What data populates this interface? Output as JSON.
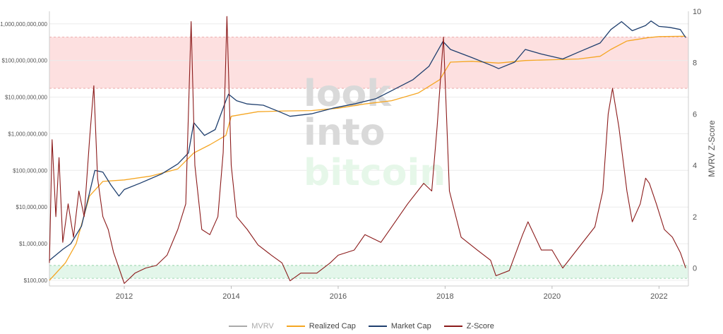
{
  "chart_data": {
    "type": "line",
    "watermark": [
      "look",
      "into",
      "bitcoin"
    ],
    "left_axis": {
      "scale": "log",
      "ticks": [
        {
          "value": 100000,
          "label": "$100,000"
        },
        {
          "value": 1000000,
          "label": "$1,000,000"
        },
        {
          "value": 10000000,
          "label": "$10,000,000"
        },
        {
          "value": 100000000,
          "label": "$100,000,000"
        },
        {
          "value": 1000000000,
          "label": "$1,000,000,000"
        },
        {
          "value": 10000000000,
          "label": "$10,000,000,000"
        },
        {
          "value": 100000000000,
          "label": "$100,000,000,000"
        },
        {
          "value": 1000000000000,
          "label": "$1,000,000,000,000"
        }
      ],
      "range": [
        70000,
        2200000000000
      ]
    },
    "right_axis": {
      "title": "MVRV Z-Score",
      "ticks": [
        "0",
        "2",
        "4",
        "6",
        "8",
        "10"
      ],
      "range": [
        -0.7,
        10
      ]
    },
    "x_axis": {
      "ticks": [
        "2012",
        "2014",
        "2016",
        "2018",
        "2020",
        "2022"
      ],
      "range": [
        2010.6,
        2022.55
      ]
    },
    "bands": [
      {
        "name": "overvalued",
        "z_range": [
          7.0,
          9.0
        ],
        "color": "#fde0e0",
        "border": "#e8a0a0"
      },
      {
        "name": "undervalued",
        "z_range": [
          -0.4,
          0.1
        ],
        "color": "#e3f6ea",
        "border": "#86cc9e"
      }
    ],
    "legend": [
      {
        "label": "MVRV",
        "color": "#aaaaaa"
      },
      {
        "label": "Realized Cap",
        "color": "#f5a623"
      },
      {
        "label": "Market Cap",
        "color": "#1f3f6e"
      },
      {
        "label": "Z-Score",
        "color": "#8b1a1a"
      }
    ],
    "series": [
      {
        "name": "Market Cap",
        "color": "#1f3f6e",
        "points": [
          [
            2010.6,
            350000
          ],
          [
            2010.85,
            700000
          ],
          [
            2011.0,
            1000000
          ],
          [
            2011.2,
            3000000
          ],
          [
            2011.45,
            100000000
          ],
          [
            2011.6,
            90000000
          ],
          [
            2011.75,
            40000000
          ],
          [
            2011.9,
            20000000
          ],
          [
            2012.0,
            30000000
          ],
          [
            2012.3,
            45000000
          ],
          [
            2012.7,
            80000000
          ],
          [
            2013.0,
            150000000
          ],
          [
            2013.2,
            300000000
          ],
          [
            2013.3,
            2000000000
          ],
          [
            2013.5,
            900000000
          ],
          [
            2013.7,
            1300000000
          ],
          [
            2013.9,
            8000000000
          ],
          [
            2013.95,
            12000000000
          ],
          [
            2014.1,
            8000000000
          ],
          [
            2014.3,
            6500000000
          ],
          [
            2014.6,
            6000000000
          ],
          [
            2014.9,
            4000000000
          ],
          [
            2015.1,
            3000000000
          ],
          [
            2015.5,
            3500000000
          ],
          [
            2015.9,
            5000000000
          ],
          [
            2016.3,
            6500000000
          ],
          [
            2016.7,
            9000000000
          ],
          [
            2017.0,
            15000000000
          ],
          [
            2017.4,
            30000000000
          ],
          [
            2017.7,
            70000000000
          ],
          [
            2017.96,
            330000000000
          ],
          [
            2018.1,
            200000000000
          ],
          [
            2018.5,
            120000000000
          ],
          [
            2018.9,
            70000000000
          ],
          [
            2019.0,
            60000000000
          ],
          [
            2019.3,
            90000000000
          ],
          [
            2019.5,
            200000000000
          ],
          [
            2019.8,
            150000000000
          ],
          [
            2020.2,
            110000000000
          ],
          [
            2020.5,
            170000000000
          ],
          [
            2020.9,
            300000000000
          ],
          [
            2021.1,
            700000000000
          ],
          [
            2021.3,
            1150000000000
          ],
          [
            2021.5,
            650000000000
          ],
          [
            2021.75,
            900000000000
          ],
          [
            2021.85,
            1200000000000
          ],
          [
            2022.0,
            850000000000
          ],
          [
            2022.2,
            800000000000
          ],
          [
            2022.4,
            700000000000
          ],
          [
            2022.5,
            420000000000
          ]
        ]
      },
      {
        "name": "Realized Cap",
        "color": "#f5a623",
        "points": [
          [
            2010.6,
            100000
          ],
          [
            2010.9,
            300000
          ],
          [
            2011.1,
            1000000
          ],
          [
            2011.35,
            20000000
          ],
          [
            2011.6,
            50000000
          ],
          [
            2012.0,
            55000000
          ],
          [
            2012.5,
            70000000
          ],
          [
            2013.0,
            110000000
          ],
          [
            2013.3,
            300000000
          ],
          [
            2013.6,
            500000000
          ],
          [
            2013.9,
            900000000
          ],
          [
            2014.0,
            3000000000
          ],
          [
            2014.5,
            4000000000
          ],
          [
            2015.0,
            4200000000
          ],
          [
            2015.5,
            4300000000
          ],
          [
            2016.0,
            5000000000
          ],
          [
            2016.5,
            6500000000
          ],
          [
            2017.0,
            8000000000
          ],
          [
            2017.5,
            13000000000
          ],
          [
            2017.9,
            30000000000
          ],
          [
            2018.1,
            90000000000
          ],
          [
            2018.5,
            95000000000
          ],
          [
            2019.0,
            85000000000
          ],
          [
            2019.5,
            100000000000
          ],
          [
            2020.0,
            105000000000
          ],
          [
            2020.5,
            110000000000
          ],
          [
            2020.9,
            130000000000
          ],
          [
            2021.1,
            200000000000
          ],
          [
            2021.4,
            340000000000
          ],
          [
            2021.8,
            420000000000
          ],
          [
            2022.0,
            450000000000
          ],
          [
            2022.5,
            460000000000
          ]
        ]
      },
      {
        "name": "Z-Score",
        "color": "#8b1a1a",
        "points": [
          [
            2010.6,
            0.2
          ],
          [
            2010.65,
            5.0
          ],
          [
            2010.72,
            2.0
          ],
          [
            2010.78,
            4.3
          ],
          [
            2010.85,
            1.0
          ],
          [
            2010.95,
            2.5
          ],
          [
            2011.05,
            1.2
          ],
          [
            2011.15,
            3.0
          ],
          [
            2011.25,
            2.0
          ],
          [
            2011.35,
            5.0
          ],
          [
            2011.43,
            7.1
          ],
          [
            2011.5,
            3.5
          ],
          [
            2011.6,
            2.0
          ],
          [
            2011.7,
            1.5
          ],
          [
            2011.8,
            0.6
          ],
          [
            2011.9,
            0.0
          ],
          [
            2012.0,
            -0.6
          ],
          [
            2012.2,
            -0.2
          ],
          [
            2012.4,
            0.0
          ],
          [
            2012.6,
            0.1
          ],
          [
            2012.8,
            0.5
          ],
          [
            2013.0,
            1.5
          ],
          [
            2013.15,
            2.5
          ],
          [
            2013.25,
            9.6
          ],
          [
            2013.32,
            4.0
          ],
          [
            2013.45,
            1.5
          ],
          [
            2013.6,
            1.3
          ],
          [
            2013.75,
            2.0
          ],
          [
            2013.85,
            4.5
          ],
          [
            2013.92,
            9.8
          ],
          [
            2014.0,
            4.0
          ],
          [
            2014.1,
            2.0
          ],
          [
            2014.3,
            1.5
          ],
          [
            2014.5,
            0.9
          ],
          [
            2014.75,
            0.5
          ],
          [
            2014.95,
            0.2
          ],
          [
            2015.1,
            -0.5
          ],
          [
            2015.3,
            -0.2
          ],
          [
            2015.6,
            -0.2
          ],
          [
            2015.85,
            0.2
          ],
          [
            2016.0,
            0.5
          ],
          [
            2016.3,
            0.7
          ],
          [
            2016.5,
            1.3
          ],
          [
            2016.8,
            1.0
          ],
          [
            2017.0,
            1.6
          ],
          [
            2017.3,
            2.5
          ],
          [
            2017.6,
            3.3
          ],
          [
            2017.75,
            3.0
          ],
          [
            2017.85,
            5.5
          ],
          [
            2017.97,
            9.0
          ],
          [
            2018.08,
            3.0
          ],
          [
            2018.3,
            1.2
          ],
          [
            2018.6,
            0.7
          ],
          [
            2018.85,
            0.3
          ],
          [
            2018.95,
            -0.3
          ],
          [
            2019.2,
            -0.1
          ],
          [
            2019.45,
            1.3
          ],
          [
            2019.55,
            1.8
          ],
          [
            2019.8,
            0.7
          ],
          [
            2020.0,
            0.7
          ],
          [
            2020.2,
            0.0
          ],
          [
            2020.5,
            0.8
          ],
          [
            2020.8,
            1.6
          ],
          [
            2020.95,
            3.0
          ],
          [
            2021.05,
            6.0
          ],
          [
            2021.13,
            7.0
          ],
          [
            2021.25,
            5.5
          ],
          [
            2021.4,
            3.0
          ],
          [
            2021.5,
            1.8
          ],
          [
            2021.65,
            2.5
          ],
          [
            2021.75,
            3.5
          ],
          [
            2021.82,
            3.3
          ],
          [
            2021.95,
            2.5
          ],
          [
            2022.1,
            1.5
          ],
          [
            2022.25,
            1.2
          ],
          [
            2022.4,
            0.6
          ],
          [
            2022.5,
            0.0
          ]
        ]
      },
      {
        "name": "MVRV",
        "color": "#aaaaaa",
        "points": []
      }
    ]
  }
}
